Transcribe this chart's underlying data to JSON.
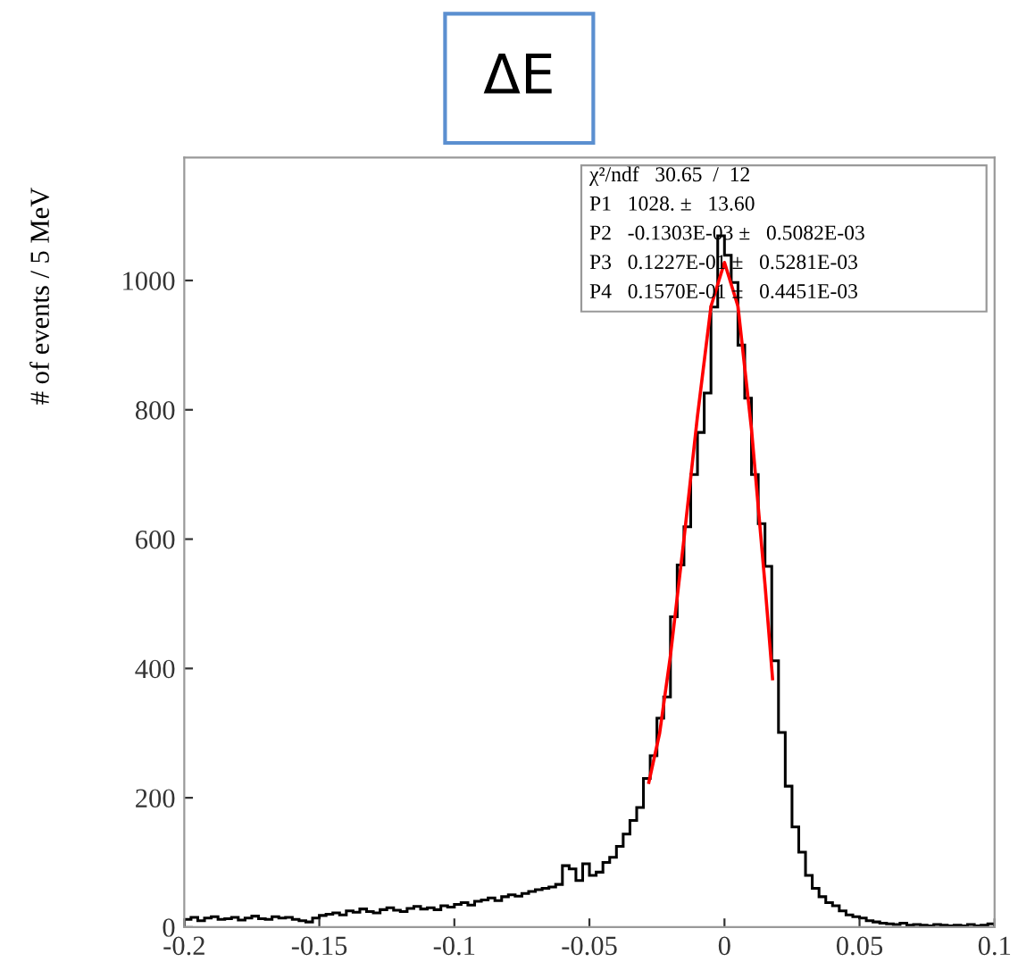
{
  "chart_data": {
    "type": "histogram",
    "title": "ΔE",
    "ylabel": "# of events / 5 MeV",
    "bins": [
      -0.2,
      -0.1975,
      -0.195,
      -0.1925,
      -0.19,
      -0.1875,
      -0.185,
      -0.1825,
      -0.18,
      -0.1775,
      -0.175,
      -0.1725,
      -0.17,
      -0.1675,
      -0.165,
      -0.1625,
      -0.16,
      -0.1575,
      -0.155,
      -0.1525,
      -0.15,
      -0.1475,
      -0.145,
      -0.1425,
      -0.14,
      -0.1375,
      -0.135,
      -0.1325,
      -0.13,
      -0.1275,
      -0.125,
      -0.1225,
      -0.12,
      -0.1175,
      -0.115,
      -0.1125,
      -0.11,
      -0.1075,
      -0.105,
      -0.1025,
      -0.1,
      -0.0975,
      -0.095,
      -0.0925,
      -0.09,
      -0.0875,
      -0.085,
      -0.0825,
      -0.08,
      -0.0775,
      -0.075,
      -0.0725,
      -0.07,
      -0.0675,
      -0.065,
      -0.0625,
      -0.06,
      -0.0575,
      -0.055,
      -0.0525,
      -0.05,
      -0.0475,
      -0.045,
      -0.0425,
      -0.04,
      -0.0375,
      -0.035,
      -0.0325,
      -0.03,
      -0.0275,
      -0.025,
      -0.0225,
      -0.02,
      -0.0175,
      -0.015,
      -0.0125,
      -0.01,
      -0.0075,
      -0.005,
      -0.0025,
      0,
      0.0025,
      0.005,
      0.0075,
      0.01,
      0.0125,
      0.015,
      0.0175,
      0.02,
      0.0225,
      0.025,
      0.0275,
      0.03,
      0.0325,
      0.035,
      0.0375,
      0.04,
      0.0425,
      0.045,
      0.0475,
      0.05,
      0.0525,
      0.055,
      0.0575,
      0.06,
      0.0625,
      0.065,
      0.0675,
      0.07,
      0.0725,
      0.075,
      0.0775,
      0.08,
      0.0825,
      0.085,
      0.0875,
      0.09,
      0.0925,
      0.095,
      0.0975,
      0.1
    ],
    "values": [
      12,
      15,
      10,
      14,
      16,
      12,
      13,
      15,
      11,
      14,
      17,
      13,
      12,
      16,
      14,
      15,
      12,
      10,
      8,
      14,
      18,
      20,
      22,
      19,
      25,
      23,
      28,
      24,
      22,
      27,
      30,
      26,
      24,
      29,
      32,
      28,
      30,
      27,
      33,
      31,
      35,
      38,
      34,
      40,
      42,
      45,
      41,
      47,
      50,
      48,
      52,
      55,
      58,
      60,
      62,
      66,
      95,
      90,
      72,
      98,
      80,
      85,
      100,
      108,
      125,
      144,
      165,
      185,
      230,
      265,
      323,
      356,
      480,
      560,
      619,
      700,
      765,
      826,
      959,
      1069,
      1039,
      997,
      900,
      818,
      700,
      624,
      558,
      412,
      301,
      218,
      155,
      116,
      80,
      60,
      47,
      38,
      33,
      25,
      19,
      16,
      14,
      10,
      8,
      6,
      5,
      4,
      6,
      3,
      4,
      3,
      2,
      4,
      3,
      2,
      3,
      2,
      4,
      2,
      3,
      5
    ],
    "color": "#000000",
    "series": [
      {
        "type": "line",
        "color": "#ff0000",
        "x": [
          -0.028,
          -0.024,
          -0.02,
          -0.015,
          -0.01,
          -0.005,
          0,
          0.005,
          0.01,
          0.015,
          0.0178
        ],
        "values": [
          224,
          300,
          420,
          600,
          790,
          960,
          1028,
          960,
          770,
          530,
          384
        ]
      }
    ],
    "xlim": [
      -0.2,
      0.1
    ],
    "ylim": [
      0,
      1190
    ],
    "xticks": [
      -0.2,
      -0.15,
      -0.1,
      -0.05,
      0,
      0.05,
      0.1
    ],
    "yticks": [
      0,
      200,
      400,
      600,
      800,
      1000
    ],
    "grid": false,
    "annotations": [
      "χ²/ndf   30.65  /  12",
      "P1   1028. ±   13.60",
      "P2   -0.1303E-03 ±   0.5082E-03",
      "P3   0.1227E-01 ±   0.5281E-03",
      "P4   0.1570E-01 ±   0.4451E-03"
    ]
  }
}
